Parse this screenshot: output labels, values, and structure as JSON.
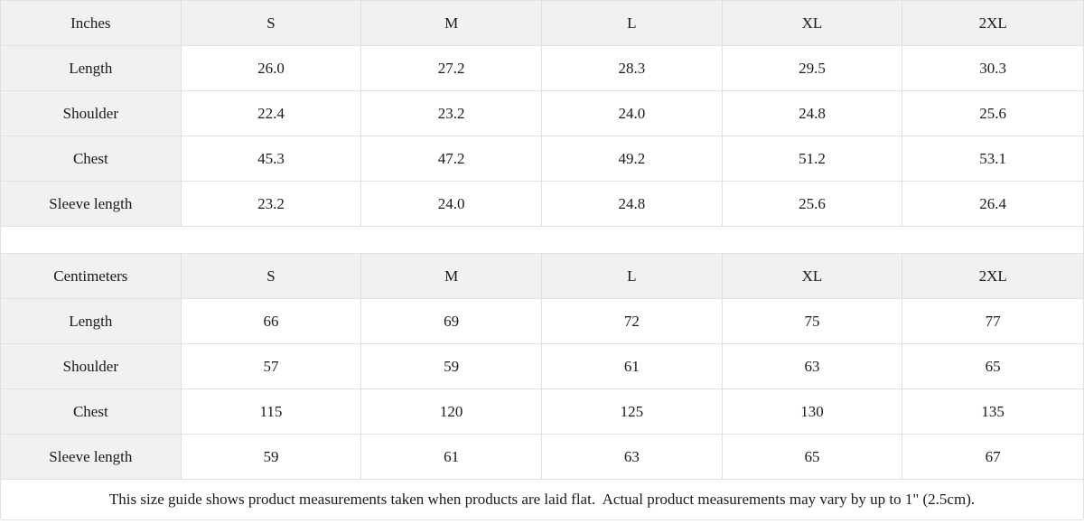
{
  "size_guide": {
    "tables": [
      {
        "unit": "Inches",
        "header": [
          "Inches",
          "S",
          "M",
          "L",
          "XL",
          "2XL"
        ],
        "rows": [
          {
            "label": "Length",
            "values": [
              "26.0",
              "27.2",
              "28.3",
              "29.5",
              "30.3"
            ]
          },
          {
            "label": "Shoulder",
            "values": [
              "22.4",
              "23.2",
              "24.0",
              "24.8",
              "25.6"
            ]
          },
          {
            "label": "Chest",
            "values": [
              "45.3",
              "47.2",
              "49.2",
              "51.2",
              "53.1"
            ]
          },
          {
            "label": "Sleeve length",
            "values": [
              "23.2",
              "24.0",
              "24.8",
              "25.6",
              "26.4"
            ]
          }
        ]
      },
      {
        "unit": "Centimeters",
        "header": [
          "Centimeters",
          "S",
          "M",
          "L",
          "XL",
          "2XL"
        ],
        "rows": [
          {
            "label": "Length",
            "values": [
              "66",
              "69",
              "72",
              "75",
              "77"
            ]
          },
          {
            "label": "Shoulder",
            "values": [
              "57",
              "59",
              "61",
              "63",
              "65"
            ]
          },
          {
            "label": "Chest",
            "values": [
              "115",
              "120",
              "125",
              "130",
              "135"
            ]
          },
          {
            "label": "Sleeve length",
            "values": [
              "59",
              "61",
              "63",
              "65",
              "67"
            ]
          }
        ]
      }
    ],
    "note": "This size guide shows product measurements taken when products are laid flat.  Actual product measurements may vary by up to 1\" (2.5cm).",
    "colors": {
      "header_bg": "#f1f1f1",
      "cell_bg": "#ffffff",
      "border": "#e1e1e1",
      "text": "#1a1a1a"
    }
  }
}
